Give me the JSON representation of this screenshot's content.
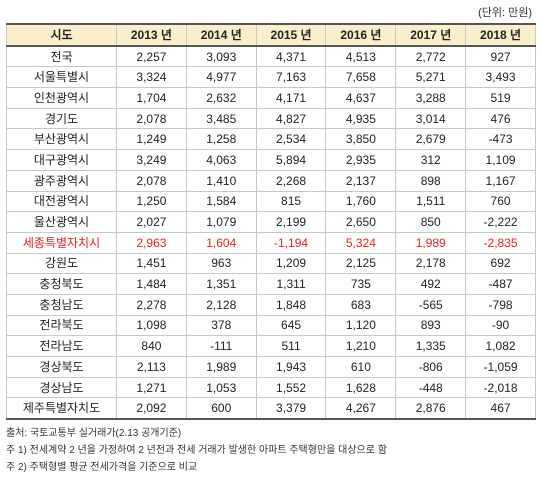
{
  "unit_label": "(단위: 만원)",
  "headers": [
    "시도",
    "2013 년",
    "2014 년",
    "2015 년",
    "2016 년",
    "2017 년",
    "2018 년"
  ],
  "rows": [
    {
      "region": "전국",
      "values": [
        "2,257",
        "3,093",
        "4,371",
        "4,513",
        "2,772",
        "927"
      ]
    },
    {
      "region": "서울특별시",
      "values": [
        "3,324",
        "4,977",
        "7,163",
        "7,658",
        "5,271",
        "3,493"
      ]
    },
    {
      "region": "인천광역시",
      "values": [
        "1,704",
        "2,632",
        "4,171",
        "4,637",
        "3,288",
        "519"
      ]
    },
    {
      "region": "경기도",
      "values": [
        "2,078",
        "3,485",
        "4,827",
        "4,935",
        "3,014",
        "476"
      ]
    },
    {
      "region": "부산광역시",
      "values": [
        "1,249",
        "1,258",
        "2,534",
        "3,850",
        "2,679",
        "-473"
      ]
    },
    {
      "region": "대구광역시",
      "values": [
        "3,249",
        "4,063",
        "5,894",
        "2,935",
        "312",
        "1,109"
      ]
    },
    {
      "region": "광주광역시",
      "values": [
        "2,078",
        "1,410",
        "2,268",
        "2,137",
        "898",
        "1,167"
      ]
    },
    {
      "region": "대전광역시",
      "values": [
        "1,250",
        "1,584",
        "815",
        "1,760",
        "1,511",
        "760"
      ]
    },
    {
      "region": "울산광역시",
      "values": [
        "2,027",
        "1,079",
        "2,199",
        "2,650",
        "850",
        "-2,222"
      ]
    },
    {
      "region": "세종특별자치시",
      "values": [
        "2,963",
        "1,604",
        "-1,194",
        "5,324",
        "1,989",
        "-2,835"
      ],
      "highlight": true
    },
    {
      "region": "강원도",
      "values": [
        "1,451",
        "963",
        "1,209",
        "2,125",
        "2,178",
        "692"
      ]
    },
    {
      "region": "충청북도",
      "values": [
        "1,484",
        "1,351",
        "1,311",
        "735",
        "492",
        "-487"
      ]
    },
    {
      "region": "충청남도",
      "values": [
        "2,278",
        "2,128",
        "1,848",
        "683",
        "-565",
        "-798"
      ]
    },
    {
      "region": "전라북도",
      "values": [
        "1,098",
        "378",
        "645",
        "1,120",
        "893",
        "-90"
      ]
    },
    {
      "region": "전라남도",
      "values": [
        "840",
        "-111",
        "511",
        "1,210",
        "1,335",
        "1,082"
      ]
    },
    {
      "region": "경상북도",
      "values": [
        "2,113",
        "1,989",
        "1,943",
        "610",
        "-806",
        "-1,059"
      ]
    },
    {
      "region": "경상남도",
      "values": [
        "1,271",
        "1,053",
        "1,552",
        "1,628",
        "-448",
        "-2,018"
      ]
    },
    {
      "region": "제주특별자치도",
      "values": [
        "2,092",
        "600",
        "3,379",
        "4,267",
        "2,876",
        "467"
      ]
    }
  ],
  "notes": [
    "출처: 국토교통부 실거래가(2.13 공개기준)",
    "주 1) 전세계약 2 년을 가정하여 2 년전과 전세 거래가 발생한 아파트 주택형만을 대상으로 함",
    "주 2) 주택형별 평균 전세가격을 기준으로 비교"
  ],
  "colors": {
    "header_bg": "#fbeecb",
    "highlight_text": "#e8201c",
    "border": "#c8c8c8"
  }
}
